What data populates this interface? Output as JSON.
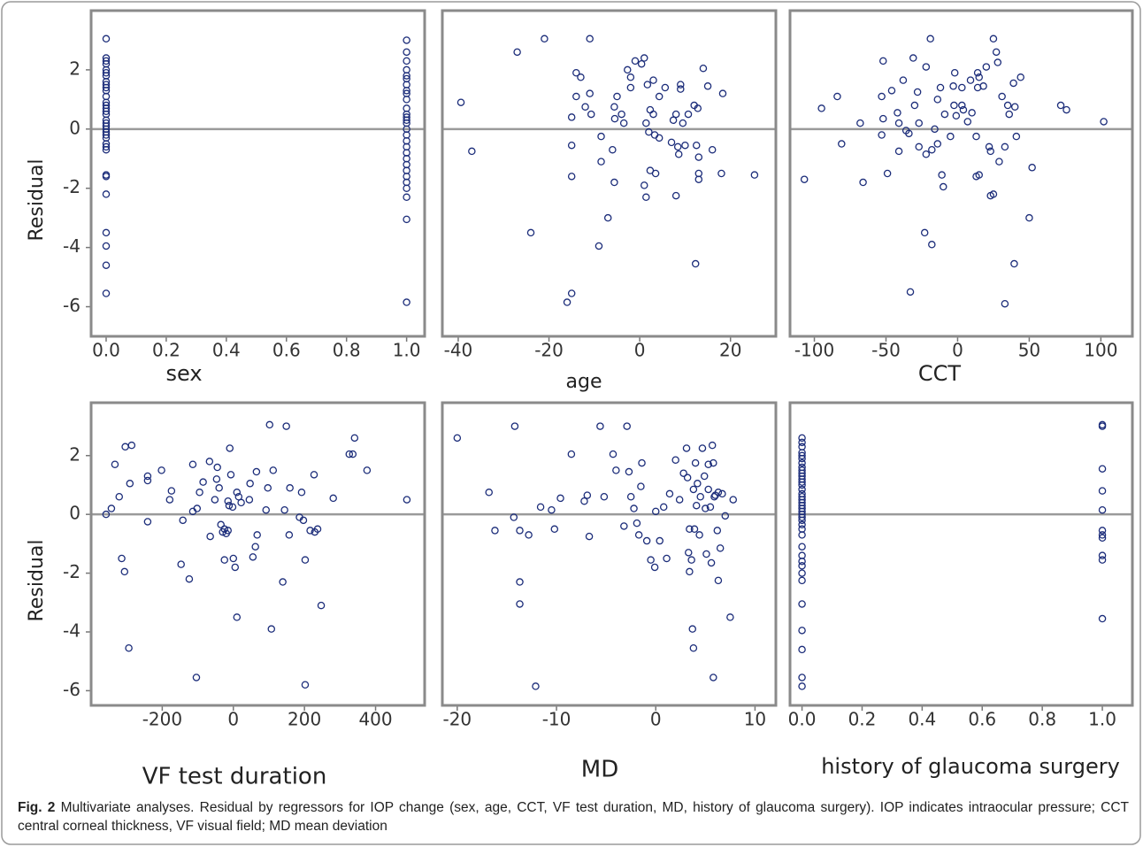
{
  "chart_data": [
    {
      "type": "scatter",
      "xlabel": "sex",
      "ylabel": "Residual",
      "color": "#1c2d7a",
      "reference_line": 0,
      "xlim": [
        -0.05,
        1.06
      ],
      "ylim": [
        -7,
        4
      ],
      "xticks": [
        {
          "value": 0,
          "label": "0.0"
        },
        {
          "value": 0.2,
          "label": "0.2"
        },
        {
          "value": 0.4,
          "label": "0.4"
        },
        {
          "value": 0.6,
          "label": "0.6"
        },
        {
          "value": 0.8,
          "label": "0.8"
        },
        {
          "value": 1,
          "label": "1.0"
        }
      ],
      "yticks": [
        2,
        0,
        -2,
        -4,
        -6
      ],
      "x": [
        0,
        0,
        0,
        0,
        0,
        0,
        0,
        0,
        0,
        0,
        0,
        0,
        0,
        0,
        0,
        0,
        0,
        0,
        0,
        0,
        0,
        0,
        0,
        0,
        0,
        0,
        0,
        0,
        0,
        0,
        0,
        0,
        0,
        0,
        1,
        1,
        1,
        1,
        1,
        1,
        1,
        1,
        1,
        1,
        1,
        1,
        1,
        1,
        1,
        1,
        1,
        1,
        1,
        1,
        1,
        1,
        1,
        1,
        1,
        1,
        1,
        1,
        1
      ],
      "values": [
        3.05,
        2.4,
        2.3,
        2.2,
        2.0,
        1.9,
        1.8,
        1.6,
        1.5,
        1.4,
        1.3,
        1.1,
        0.9,
        0.8,
        0.7,
        0.6,
        0.5,
        0.3,
        0.2,
        0.1,
        0,
        -0.1,
        -0.2,
        -0.3,
        -0.5,
        -0.6,
        -0.7,
        -1.55,
        -1.6,
        -2.2,
        -3.5,
        -3.95,
        -4.6,
        -5.55,
        3.0,
        2.6,
        2.3,
        2.0,
        1.8,
        1.7,
        1.5,
        1.3,
        1.2,
        1.0,
        0.7,
        0.5,
        0.4,
        0.3,
        0.2,
        0,
        -0.2,
        -0.4,
        -0.6,
        -0.8,
        -1.0,
        -1.2,
        -1.4,
        -1.6,
        -1.8,
        -2.0,
        -2.3,
        -3.05,
        -5.85
      ]
    },
    {
      "type": "scatter",
      "xlabel": "age",
      "color": "#1c2d7a",
      "reference_line": 0,
      "xlim": [
        -43.5,
        30
      ],
      "ylim": [
        -7,
        4
      ],
      "xticks": [
        -40,
        -20,
        0,
        20
      ],
      "x": [
        -39.4,
        -37,
        -27,
        -24,
        -21,
        -16,
        -15,
        -15,
        -15,
        -15,
        -14,
        -13,
        -11,
        -12,
        -11,
        -14,
        -9,
        -8.5,
        -8.5,
        -7,
        -6,
        -5.6,
        -5.6,
        -5.5,
        -5,
        -4,
        -3.5,
        -2.7,
        -2,
        -2,
        -1,
        0.4,
        1,
        1,
        1.4,
        1.7,
        2.3,
        2,
        2.3,
        3,
        3,
        3.3,
        3.5,
        4.3,
        5.6,
        7,
        8,
        8,
        8.4,
        8.6,
        9,
        9,
        9.5,
        10,
        10.7,
        12,
        12.3,
        12.5,
        12.8,
        13,
        13,
        13,
        14,
        15,
        16,
        18.3,
        18,
        25.3,
        1.4,
        7.4,
        4.3,
        -10.7
      ],
      "values": [
        0.9,
        -0.75,
        2.6,
        -3.5,
        3.05,
        -5.85,
        -5.55,
        -1.6,
        -0.55,
        0.4,
        1.9,
        1.75,
        3.05,
        0.75,
        1.2,
        1.1,
        -3.95,
        -0.25,
        -1.1,
        -3.0,
        -0.7,
        0.75,
        -1.8,
        0.35,
        1.1,
        0.5,
        0.2,
        2.0,
        1.4,
        1.75,
        2.3,
        2.2,
        2.4,
        -1.9,
        -2.3,
        1.5,
        0.65,
        -0.1,
        -1.4,
        0.5,
        1.65,
        -0.2,
        -1.5,
        1.1,
        1.4,
        -0.45,
        0.5,
        -2.25,
        -0.6,
        -0.85,
        1.5,
        1.35,
        0.2,
        -0.55,
        0.5,
        0.8,
        -4.55,
        -0.55,
        0.7,
        -0.95,
        -1.7,
        -1.5,
        2.05,
        1.45,
        -0.7,
        1.2,
        -1.5,
        -1.55,
        0.2,
        0.3,
        -0.3,
        0.5
      ]
    },
    {
      "type": "scatter",
      "xlabel": "CCT",
      "color": "#1c2d7a",
      "reference_line": 0,
      "xlim": [
        -117,
        122
      ],
      "ylim": [
        -7,
        4
      ],
      "xticks": [
        -100,
        -50,
        0,
        50,
        100
      ],
      "x": [
        -107,
        -95,
        -84,
        -81,
        -68,
        -66,
        -52,
        -53,
        -52,
        -49,
        -53,
        -46,
        -41,
        -42,
        -41,
        -38,
        -36,
        -34,
        -33,
        -31,
        -30,
        -28,
        -27,
        -27,
        -23,
        -22,
        -22,
        -19,
        -18,
        -18,
        -16,
        -14,
        -14,
        -12,
        -11,
        -10,
        -9,
        -5,
        -3,
        -2.5,
        -2,
        -1,
        3,
        3,
        4,
        7,
        9,
        10,
        13,
        13,
        14,
        14,
        15,
        15,
        18,
        20,
        22,
        23,
        23,
        25,
        25,
        27,
        28,
        29,
        31,
        33,
        33,
        35,
        36,
        39,
        39.5,
        40,
        41,
        44,
        50,
        52,
        72,
        76,
        102
      ],
      "values": [
        -1.7,
        0.7,
        1.1,
        -0.5,
        0.2,
        -1.8,
        2.3,
        -0.2,
        0.35,
        -1.5,
        1.1,
        1.3,
        0.2,
        0.55,
        -0.75,
        1.65,
        -0.05,
        -0.15,
        -5.5,
        2.4,
        0.8,
        1.25,
        0.2,
        -0.6,
        -3.5,
        -0.85,
        2.1,
        3.05,
        -3.9,
        -0.7,
        0,
        1.0,
        -0.5,
        1.4,
        -1.55,
        -1.95,
        0.5,
        -0.25,
        1.45,
        0.8,
        1.9,
        0.45,
        0.8,
        1.4,
        0.65,
        0.25,
        1.65,
        0.55,
        -0.25,
        -1.6,
        1.4,
        1.9,
        1.75,
        -1.55,
        1.45,
        2.1,
        -0.6,
        -0.75,
        -2.25,
        -2.2,
        3.05,
        2.6,
        2.25,
        -1.1,
        1.1,
        -0.6,
        -5.9,
        0.8,
        0.5,
        1.55,
        -4.55,
        0.75,
        -0.25,
        1.75,
        -3.0,
        -1.3,
        0.8,
        0.65,
        0.25
      ]
    },
    {
      "type": "scatter",
      "xlabel": "VF test duration",
      "ylabel": "Residual",
      "color": "#1c2d7a",
      "reference_line": 0,
      "xlim": [
        -400,
        538
      ],
      "ylim": [
        -6.5,
        3.8
      ],
      "xticks": [
        -200,
        0,
        200,
        400
      ],
      "yticks": [
        2,
        0,
        -2,
        -4,
        -6
      ],
      "x": [
        -358,
        -343,
        -333,
        -321,
        -314,
        -306,
        -304,
        -291,
        -286,
        -294,
        -241,
        -241,
        -241,
        -202,
        -179,
        -174,
        -147,
        -142,
        -124,
        -114,
        -114,
        -102,
        -104,
        -95,
        -85,
        -67,
        -65,
        -52,
        -47,
        -45,
        -40,
        -35,
        -30,
        -25,
        -25,
        -20,
        -15,
        -15,
        -10,
        -7,
        -12,
        -2,
        0,
        5,
        10,
        10,
        15,
        22,
        45,
        47,
        55,
        62,
        67,
        65,
        92,
        97,
        102,
        107,
        112,
        139,
        144,
        149,
        157,
        159,
        186,
        192,
        197,
        202,
        202,
        216,
        227,
        229,
        237,
        247,
        281,
        326,
        336,
        341,
        376,
        488
      ],
      "values": [
        0,
        0.2,
        1.7,
        0.6,
        -1.5,
        -1.95,
        2.3,
        1.05,
        2.35,
        -4.55,
        -0.25,
        1.3,
        1.15,
        1.5,
        0.5,
        0.8,
        -1.7,
        -0.2,
        -2.2,
        0.1,
        1.7,
        0.2,
        -5.55,
        0.75,
        1.1,
        1.8,
        -0.75,
        0.5,
        1.2,
        1.6,
        0.9,
        -0.35,
        -0.6,
        -0.5,
        -1.55,
        -0.65,
        0.45,
        -0.55,
        2.25,
        1.35,
        0.3,
        0.25,
        -1.5,
        -1.8,
        -3.5,
        0.75,
        0.6,
        0.4,
        0.5,
        1.05,
        -1.45,
        -1.1,
        -0.7,
        1.45,
        0.15,
        0.9,
        3.05,
        -3.9,
        1.5,
        -2.3,
        0.15,
        3.0,
        -0.7,
        0.9,
        -0.1,
        0.75,
        -0.2,
        -1.55,
        -5.8,
        -0.55,
        1.35,
        -0.6,
        -0.5,
        -3.1,
        0.55,
        2.05,
        2.05,
        2.6,
        1.5,
        0.5
      ]
    },
    {
      "type": "scatter",
      "xlabel": "MD",
      "color": "#1c2d7a",
      "reference_line": 0,
      "xlim": [
        -21.5,
        12.1
      ],
      "ylim": [
        -6.5,
        3.8
      ],
      "xticks": [
        -20,
        -10,
        0,
        10
      ],
      "x": [
        -20,
        -16.8,
        -16.2,
        -14.3,
        -14.2,
        -13.7,
        -13.7,
        -13.7,
        -12.8,
        -12.1,
        -11.6,
        -10.5,
        -10.2,
        -9.6,
        -8.5,
        -7.2,
        -6.9,
        -6.7,
        -5.6,
        -5.2,
        -4.3,
        -4.0,
        -3.2,
        -2.9,
        -2.7,
        -2.5,
        -2.2,
        -1.9,
        -1.7,
        -1.5,
        -1.4,
        -0.9,
        -0.5,
        -0.1,
        0,
        0.4,
        0.8,
        1.1,
        1.4,
        2,
        2.4,
        2.8,
        3.1,
        3.2,
        3.3,
        3.4,
        3.4,
        3.6,
        3.7,
        3.8,
        3.8,
        3.9,
        4.0,
        4.1,
        4.2,
        4.4,
        4.5,
        4.7,
        4.9,
        5.0,
        5.1,
        5.3,
        5.3,
        5.5,
        5.6,
        5.7,
        5.8,
        5.8,
        5.9,
        6.0,
        6.2,
        6.3,
        6.3,
        6.5,
        6.7,
        7.0,
        7.5,
        7.8
      ],
      "values": [
        2.6,
        0.75,
        -0.55,
        -0.1,
        3.0,
        -0.55,
        -2.3,
        -3.05,
        -0.7,
        -5.85,
        0.25,
        0.15,
        -0.5,
        0.55,
        2.05,
        0.45,
        0.65,
        -0.75,
        3.0,
        0.6,
        2.05,
        1.5,
        -0.4,
        3.0,
        1.45,
        0.6,
        0.2,
        -0.3,
        -0.7,
        0.95,
        1.75,
        -0.9,
        -1.55,
        -1.8,
        0.1,
        -0.9,
        0.25,
        -1.5,
        0.7,
        1.85,
        0.5,
        1.4,
        2.25,
        1.25,
        -1.3,
        -0.5,
        -1.95,
        -1.55,
        -3.9,
        -4.55,
        0.85,
        -0.5,
        1.75,
        0.3,
        1.05,
        -0.7,
        0.6,
        2.25,
        1.3,
        0.2,
        -1.35,
        1.7,
        0.85,
        0.25,
        -1.65,
        2.35,
        1.75,
        -5.55,
        0.6,
        0.65,
        -0.55,
        0.75,
        -2.25,
        -1.15,
        0.7,
        -0.05,
        -3.5,
        0.5
      ]
    },
    {
      "type": "scatter",
      "xlabel": "history of glaucoma surgery",
      "color": "#1c2d7a",
      "reference_line": 0,
      "xlim": [
        -0.04,
        1.1
      ],
      "ylim": [
        -6.5,
        3.8
      ],
      "xticks": [
        {
          "value": 0,
          "label": "0.0"
        },
        {
          "value": 0.2,
          "label": "0.2"
        },
        {
          "value": 0.4,
          "label": "0.4"
        },
        {
          "value": 0.6,
          "label": "0.6"
        },
        {
          "value": 0.8,
          "label": "0.8"
        },
        {
          "value": 1,
          "label": "1.0"
        }
      ],
      "x": [
        0,
        0,
        0,
        0,
        0,
        0,
        0,
        0,
        0,
        0,
        0,
        0,
        0,
        0,
        0,
        0,
        0,
        0,
        0,
        0,
        0,
        0,
        0,
        0,
        0,
        0,
        0,
        0,
        0,
        0,
        0,
        0,
        0,
        0,
        0,
        0,
        0,
        0,
        0,
        1,
        1,
        1,
        1,
        1,
        1,
        1,
        1,
        1,
        1,
        1
      ],
      "values": [
        2.6,
        2.45,
        2.3,
        2.1,
        2.0,
        1.9,
        1.75,
        1.6,
        1.5,
        1.4,
        1.3,
        1.2,
        1.1,
        1.0,
        0.85,
        0.7,
        0.6,
        0.5,
        0.4,
        0.3,
        0.2,
        0.1,
        0,
        -0.1,
        -0.2,
        -0.35,
        -0.5,
        -0.7,
        -1.1,
        -1.4,
        -1.6,
        -1.75,
        -2.0,
        -2.25,
        -3.05,
        -3.95,
        -4.6,
        -5.55,
        -5.85,
        3.05,
        3.0,
        1.55,
        0.8,
        0.15,
        -0.55,
        -0.7,
        -0.8,
        -1.4,
        -1.55,
        -3.55
      ]
    }
  ],
  "caption": {
    "label": "Fig. 2",
    "text": "Multivariate analyses. Residual by regressors for IOP change (sex, age, CCT, VF test duration, MD, history of glaucoma surgery). IOP indicates intraocular pressure; CCT central corneal thickness, VF visual field; MD mean deviation"
  }
}
